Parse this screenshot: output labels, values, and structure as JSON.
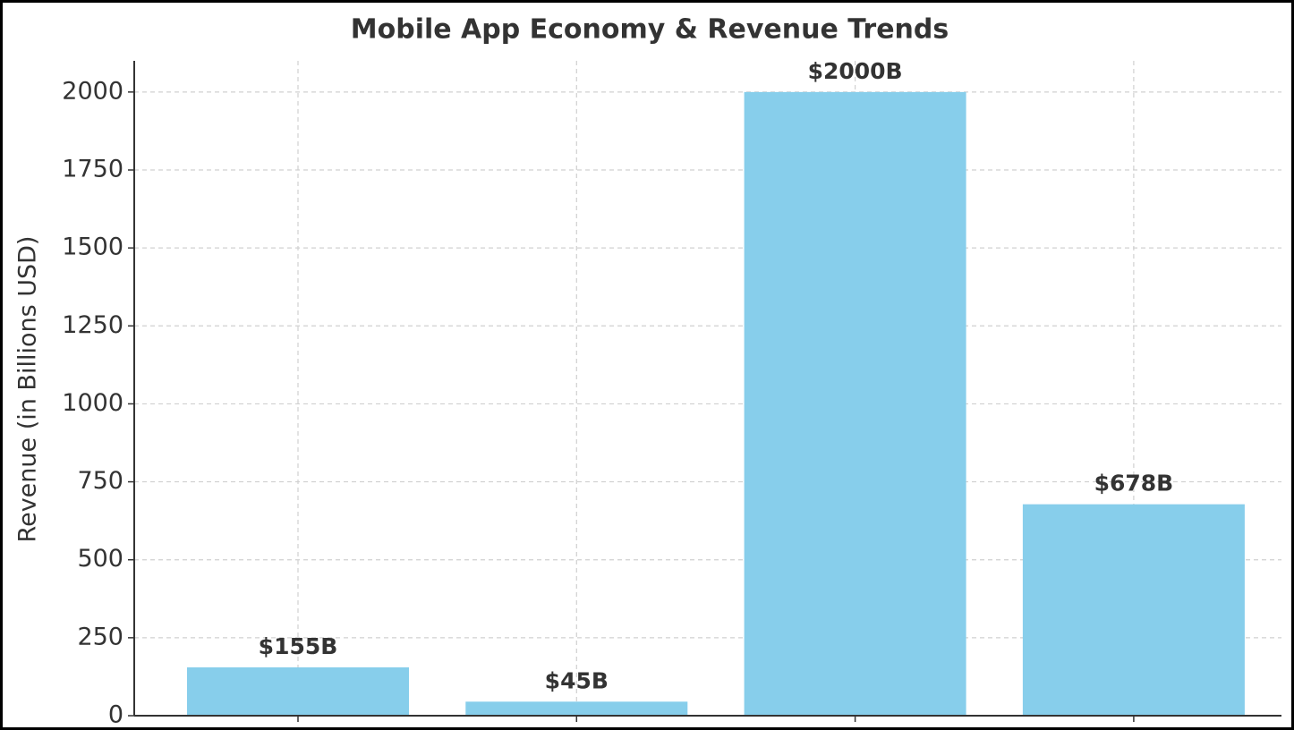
{
  "chart_data": {
    "type": "bar",
    "title": "Mobile App Economy & Revenue Trends",
    "y_label": "Revenue (in Billions USD)",
    "categories": [
      null,
      null,
      null,
      null
    ],
    "values": [
      155,
      45,
      2000,
      678
    ],
    "value_labels": [
      "$155B",
      "$45B",
      "$2000B",
      "$678B"
    ],
    "color": "#87ceeb",
    "ylim": [
      0,
      2100
    ],
    "yticks": [
      0,
      250,
      500,
      750,
      1000,
      1250,
      1500,
      1750,
      2000
    ],
    "grid": true
  }
}
